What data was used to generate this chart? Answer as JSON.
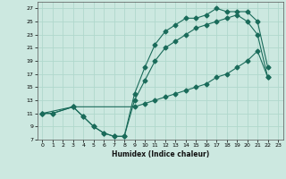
{
  "xlabel": "Humidex (Indice chaleur)",
  "xlim": [
    -0.5,
    23.5
  ],
  "ylim": [
    7,
    28
  ],
  "yticks": [
    7,
    9,
    11,
    13,
    15,
    17,
    19,
    21,
    23,
    25,
    27
  ],
  "xticks": [
    0,
    1,
    2,
    3,
    4,
    5,
    6,
    7,
    8,
    9,
    10,
    11,
    12,
    13,
    14,
    15,
    16,
    17,
    18,
    19,
    20,
    21,
    22,
    23
  ],
  "bg_color": "#cce8e0",
  "line_color": "#1a6b5a",
  "grid_color": "#b0d8cc",
  "line1_x": [
    0,
    1,
    3,
    4,
    5,
    6,
    7,
    8,
    9,
    10,
    11,
    12,
    13,
    14,
    15,
    16,
    17,
    18,
    19,
    20,
    21,
    22
  ],
  "line1_y": [
    11,
    11,
    12,
    10.5,
    9,
    8,
    7.5,
    7.5,
    14,
    18,
    21.5,
    23.5,
    24.5,
    25.5,
    25.5,
    26,
    27,
    26.5,
    26.5,
    26.5,
    25,
    18
  ],
  "line2_x": [
    0,
    1,
    3,
    4,
    5,
    6,
    7,
    8,
    9,
    10,
    11,
    12,
    13,
    14,
    15,
    16,
    17,
    18,
    19,
    20,
    21,
    22
  ],
  "line2_y": [
    11,
    11,
    12,
    10.5,
    9,
    8,
    7.5,
    7.5,
    13,
    16,
    19,
    21,
    22,
    23,
    24,
    24.5,
    25,
    25.5,
    26,
    25,
    23,
    16.5
  ],
  "line3_x": [
    0,
    3,
    9,
    10,
    11,
    12,
    13,
    14,
    15,
    16,
    17,
    18,
    19,
    20,
    21,
    22
  ],
  "line3_y": [
    11,
    12,
    12,
    12.5,
    13,
    13.5,
    14,
    14.5,
    15,
    15.5,
    16.5,
    17,
    18,
    19,
    20.5,
    16.5
  ],
  "markersize": 2.5
}
